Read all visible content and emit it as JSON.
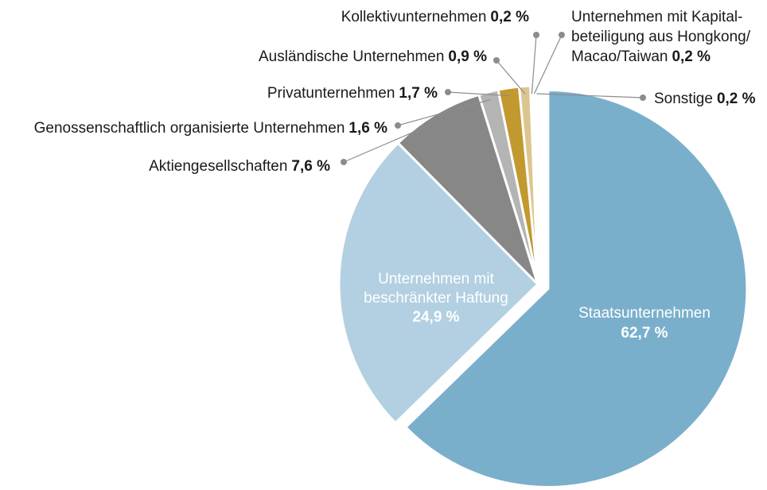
{
  "chart_data": {
    "type": "pie",
    "categories": [
      "Staatsunternehmen",
      "Unternehmen mit\nbeschränkter Haftung",
      "Aktiengesellschaften",
      "Genossenschaftlich organisierte Unternehmen",
      "Privatunternehmen",
      "Ausländische Unternehmen",
      "Kollektivunternehmen",
      "Unternehmen mit Kapital-\nbeteiligung aus Hongkong/\nMacao/Taiwan",
      "Sonstige"
    ],
    "values": [
      62.7,
      24.9,
      7.6,
      1.6,
      1.7,
      0.9,
      0.2,
      0.2,
      0.2
    ],
    "value_labels": [
      "62,7 %",
      "24,9 %",
      "7,6 %",
      "1,6 %",
      "1,7 %",
      "0,9 %",
      "0,2 %",
      "0,2 %",
      "0,2 %"
    ],
    "colors": [
      "#7aafcc",
      "#b2d0e2",
      "#878787",
      "#b4b4b4",
      "#c2992f",
      "#dcc58f",
      "#1a1a1a",
      "#5e5e5e",
      "#1e4f7d"
    ]
  }
}
